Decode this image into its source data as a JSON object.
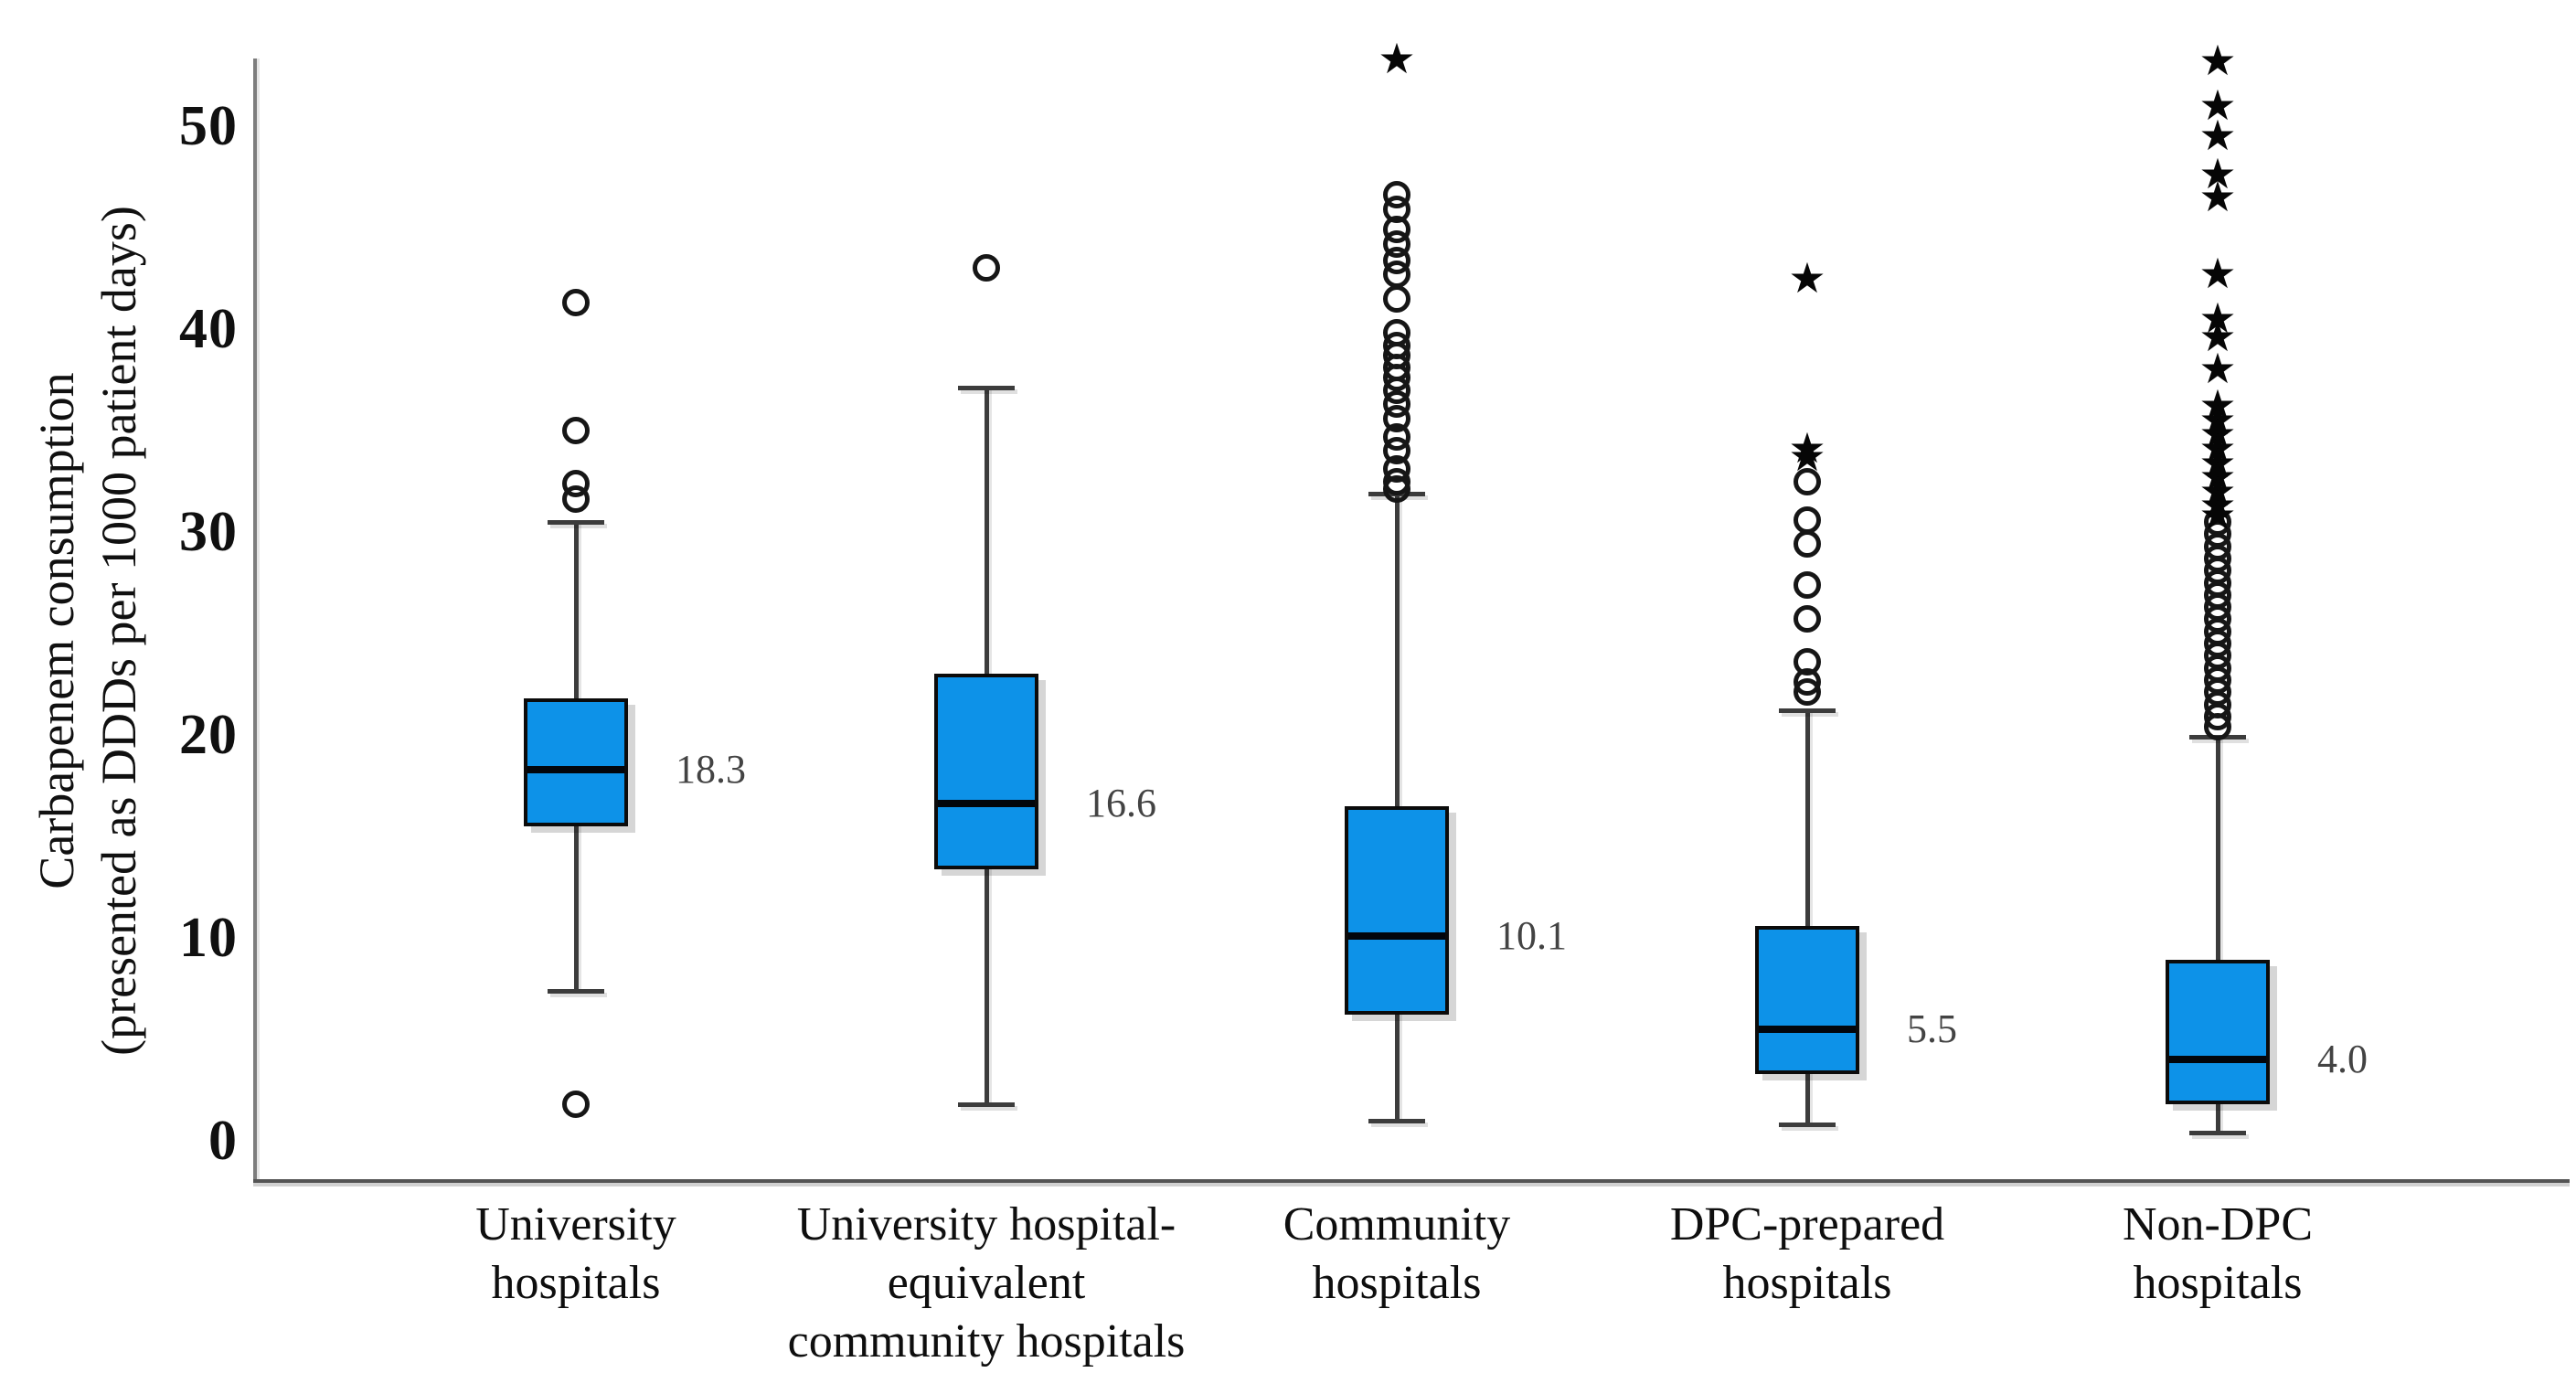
{
  "figure": {
    "background": "#ffffff"
  },
  "y_axis": {
    "title_line1": "Carbapenem consumption",
    "title_line2": "(presented as DDDs per 1000 patient days)"
  },
  "chart_data": {
    "type": "boxplot",
    "title": "",
    "xlabel": "",
    "ylabel": "Carbapenem consumption (presented as DDDs per 1000 patient days)",
    "y_ticks": [
      0,
      10,
      20,
      30,
      40,
      50
    ],
    "ylim": [
      -2,
      55
    ],
    "grid": false,
    "legend": "none",
    "marker_legend": {
      "circle": "outlier",
      "star": "extreme outlier"
    },
    "categories": [
      "University hospitals",
      "University hospital-equivalent community hospitals",
      "Community hospitals",
      "DPC-prepared hospitals",
      "Non-DPC hospitals"
    ],
    "series": [
      {
        "name": "University hospitals",
        "label_lines": [
          "University",
          "hospitals"
        ],
        "whisker_low": 7.4,
        "q1": 15.5,
        "median": 18.3,
        "q3": 21.8,
        "whisker_high": 30.5,
        "median_label": "18.3",
        "outliers_circle": [
          41.3,
          35.0,
          32.4,
          31.6,
          1.8
        ],
        "outliers_star": []
      },
      {
        "name": "University hospital-equivalent community hospitals",
        "label_lines": [
          "University hospital-",
          "equivalent",
          "community hospitals"
        ],
        "whisker_low": 1.8,
        "q1": 13.4,
        "median": 16.6,
        "q3": 23.0,
        "whisker_high": 37.1,
        "median_label": "16.6",
        "outliers_circle": [
          43.0
        ],
        "outliers_star": []
      },
      {
        "name": "Community hospitals",
        "label_lines": [
          "Community",
          "hospitals"
        ],
        "whisker_low": 1.0,
        "q1": 6.2,
        "median": 10.1,
        "q3": 16.5,
        "whisker_high": 31.9,
        "median_label": "10.1",
        "outliers_circle": [
          46.6,
          45.9,
          44.9,
          44.2,
          43.4,
          42.7,
          41.5,
          39.8,
          39.2,
          38.7,
          38.1,
          37.6,
          37.0,
          36.3,
          35.6,
          34.7,
          34.0,
          33.1,
          32.5,
          32.1
        ],
        "outliers_star": [
          53.3
        ]
      },
      {
        "name": "DPC-prepared hospitals",
        "label_lines": [
          "DPC-prepared",
          "hospitals"
        ],
        "whisker_low": 0.8,
        "q1": 3.3,
        "median": 5.5,
        "q3": 10.6,
        "whisker_high": 21.2,
        "median_label": "5.5",
        "outliers_circle": [
          32.5,
          30.6,
          29.4,
          27.4,
          25.7,
          23.6,
          22.6,
          22.1
        ],
        "outliers_star": [
          42.5,
          34.1,
          33.7
        ]
      },
      {
        "name": "Non-DPC hospitals",
        "label_lines": [
          "Non-DPC",
          "hospitals"
        ],
        "whisker_low": 0.4,
        "q1": 1.8,
        "median": 4.0,
        "q3": 8.9,
        "whisker_high": 19.9,
        "median_label": "4.0",
        "outliers_circle": [
          30.5,
          29.9,
          29.3,
          28.7,
          28.1,
          27.5,
          26.9,
          26.3,
          25.7,
          25.1,
          24.5,
          23.9,
          23.3,
          22.7,
          22.1,
          21.5,
          20.9,
          20.4
        ],
        "outliers_star": [
          53.2,
          51.0,
          49.5,
          47.6,
          46.5,
          42.7,
          40.5,
          39.6,
          38.0,
          36.2,
          35.5,
          34.8,
          34.1,
          33.4,
          32.7,
          32.0,
          31.3,
          30.8
        ]
      }
    ],
    "colors": {
      "box_fill": "#0d92e8",
      "box_border": "#0b0b0b",
      "median_line": "#02060c",
      "whisker": "#3c3c3c",
      "axis": "#545454",
      "tick_text": "#101010",
      "median_label_text": "#434343"
    }
  }
}
